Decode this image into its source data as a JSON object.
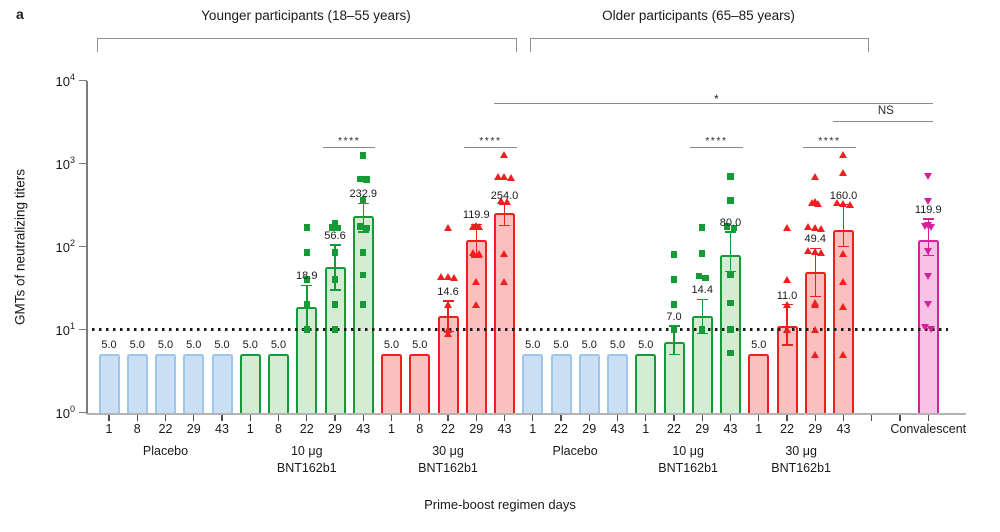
{
  "panel_label": "a",
  "cohorts": [
    {
      "title": "Younger participants (18–55 years)"
    },
    {
      "title": "Older participants (65–85 years)"
    }
  ],
  "chart_data": {
    "type": "bar",
    "scale": "log",
    "title": "",
    "ylabel": "GMTs of neutralizing titers",
    "xlabel": "Prime-boost regimen days",
    "ylim": [
      1,
      10000
    ],
    "y_tick_base": "10",
    "y_tick_exponents": [
      "0",
      "1",
      "2",
      "3",
      "4"
    ],
    "lloq_value": 10,
    "grid": false,
    "colors": {
      "axis": "#b3b3b3",
      "axis_dark": "#7c7c7c",
      "tick": "#4d4d4d",
      "sig_line": "#8a8a8a",
      "lloq": "#1a1a1a",
      "placebo_fill": "#cadff4",
      "placebo_border": "#9fc5ea",
      "dose10_fill": "#d3ecd3",
      "dose10_border": "#149b38",
      "dose30_fill": "#fabfbf",
      "dose30_border": "#f01f1f",
      "conv_fill": "#f8c2e4",
      "conv_border": "#d6219c"
    },
    "groups": [
      {
        "name_lines": [
          "Placebo"
        ],
        "cohort": 0,
        "color_key": "placebo",
        "marker": "none",
        "bars": [
          {
            "x": "1",
            "value": 5.0,
            "label": "5.0"
          },
          {
            "x": "8",
            "value": 5.0,
            "label": "5.0"
          },
          {
            "x": "22",
            "value": 5.0,
            "label": "5.0"
          },
          {
            "x": "29",
            "value": 5.0,
            "label": "5.0"
          },
          {
            "x": "43",
            "value": 5.0,
            "label": "5.0"
          }
        ]
      },
      {
        "name_lines": [
          "10 μg",
          "BNT162b1"
        ],
        "cohort": 0,
        "color_key": "dose10",
        "marker": "square",
        "bars": [
          {
            "x": "1",
            "value": 5.0,
            "label": "5.0"
          },
          {
            "x": "8",
            "value": 5.0,
            "label": "5.0"
          },
          {
            "x": "22",
            "value": 18.9,
            "label": "18.9",
            "err": [
              10,
              34
            ],
            "points": [
              170,
              85,
              40,
              20,
              10
            ]
          },
          {
            "x": "29",
            "value": 56.6,
            "label": "56.6",
            "err": [
              30,
              105
            ],
            "points": [
              190,
              170,
              168,
              85,
              40,
              20,
              10
            ]
          },
          {
            "x": "43",
            "value": 232.9,
            "label": "232.9",
            "err": [
              150,
              330
            ],
            "points": [
              1250,
              650,
              640,
              360,
              175,
              168,
              85,
              45,
              20
            ]
          }
        ]
      },
      {
        "name_lines": [
          "30 μg",
          "BNT162b1"
        ],
        "cohort": 0,
        "color_key": "dose30",
        "marker": "tri-up",
        "bars": [
          {
            "x": "1",
            "value": 5.0,
            "label": "5.0"
          },
          {
            "x": "8",
            "value": 5.0,
            "label": "5.0"
          },
          {
            "x": "22",
            "value": 14.6,
            "label": "14.6",
            "err": [
              9.5,
              22
            ],
            "points": [
              170,
              44,
              43,
              42,
              20,
              10,
              9
            ]
          },
          {
            "x": "29",
            "value": 119.9,
            "label": "119.9",
            "err": [
              75,
              185
            ],
            "points": [
              180,
              176,
              172,
              85,
              82,
              38,
              20
            ]
          },
          {
            "x": "43",
            "value": 254.0,
            "label": "254.0",
            "err": [
              180,
              320
            ],
            "points": [
              1300,
              700,
              690,
              680,
              360,
              350,
              82,
              38
            ]
          }
        ]
      },
      {
        "name_lines": [
          "Placebo"
        ],
        "cohort": 1,
        "color_key": "placebo",
        "marker": "none",
        "bars": [
          {
            "x": "1",
            "value": 5.0,
            "label": "5.0"
          },
          {
            "x": "22",
            "value": 5.0,
            "label": "5.0"
          },
          {
            "x": "29",
            "value": 5.0,
            "label": "5.0"
          },
          {
            "x": "43",
            "value": 5.0,
            "label": "5.0"
          }
        ]
      },
      {
        "name_lines": [
          "10 μg",
          "BNT162b1"
        ],
        "cohort": 1,
        "color_key": "dose10",
        "marker": "square",
        "bars": [
          {
            "x": "1",
            "value": 5.0,
            "label": "5.0"
          },
          {
            "x": "22",
            "value": 7.0,
            "label": "7.0",
            "err": [
              5,
              11
            ],
            "points": [
              80,
              40,
              20,
              10
            ]
          },
          {
            "x": "29",
            "value": 14.4,
            "label": "14.4",
            "err": [
              9,
              23
            ],
            "points": [
              170,
              82,
              44,
              42,
              10
            ]
          },
          {
            "x": "43",
            "value": 80.0,
            "label": "80.0",
            "err": [
              50,
              150
            ],
            "points": [
              700,
              360,
              175,
              168,
              46,
              21,
              10,
              5.2
            ]
          }
        ]
      },
      {
        "name_lines": [
          "30 μg",
          "BNT162b1"
        ],
        "cohort": 1,
        "color_key": "dose30",
        "marker": "tri-up",
        "bars": [
          {
            "x": "1",
            "value": 5.0,
            "label": "5.0"
          },
          {
            "x": "22",
            "value": 11.0,
            "label": "11.0",
            "err": [
              6.5,
              20
            ],
            "points": [
              170,
              40,
              20,
              10
            ]
          },
          {
            "x": "29",
            "value": 49.4,
            "label": "49.4",
            "err": [
              25,
              95
            ],
            "points": [
              700,
              350,
              340,
              330,
              175,
              170,
              165,
              90,
              87,
              85,
              21,
              20,
              10,
              5
            ]
          },
          {
            "x": "43",
            "value": 160.0,
            "label": "160.0",
            "err": [
              100,
              320
            ],
            "points": [
              1300,
              780,
              340,
              330,
              320,
              82,
              38,
              19,
              5
            ]
          }
        ]
      },
      {
        "name_lines": [
          "Convalescent"
        ],
        "cohort": null,
        "color_key": "conv",
        "marker": "tri-down",
        "gap_before": 2,
        "label_on_tick_row": true,
        "bars": [
          {
            "x": "",
            "value": 119.9,
            "label": "119.9",
            "err": [
              78,
              215
            ],
            "points": [
              700,
              350,
              180,
              175,
              170,
              87,
              43,
              20,
              10.5,
              10
            ]
          }
        ]
      }
    ],
    "significance": [
      {
        "label": "****",
        "kind": "pair",
        "group": 1,
        "bars": [
          3,
          4
        ]
      },
      {
        "label": "****",
        "kind": "pair",
        "group": 2,
        "bars": [
          3,
          4
        ]
      },
      {
        "label": "****",
        "kind": "pair",
        "group": 4,
        "bars": [
          2,
          3
        ]
      },
      {
        "label": "****",
        "kind": "pair",
        "group": 5,
        "bars": [
          2,
          3
        ]
      },
      {
        "label": "*",
        "kind": "span",
        "from_group": 2,
        "from_bar": 4,
        "to_group": 6,
        "to_bar": 0,
        "y_hint": 103
      },
      {
        "label": "NS",
        "kind": "span",
        "from_group": 5,
        "from_bar": 3,
        "to_group": 6,
        "to_bar": 0,
        "y_hint": 121
      }
    ]
  }
}
